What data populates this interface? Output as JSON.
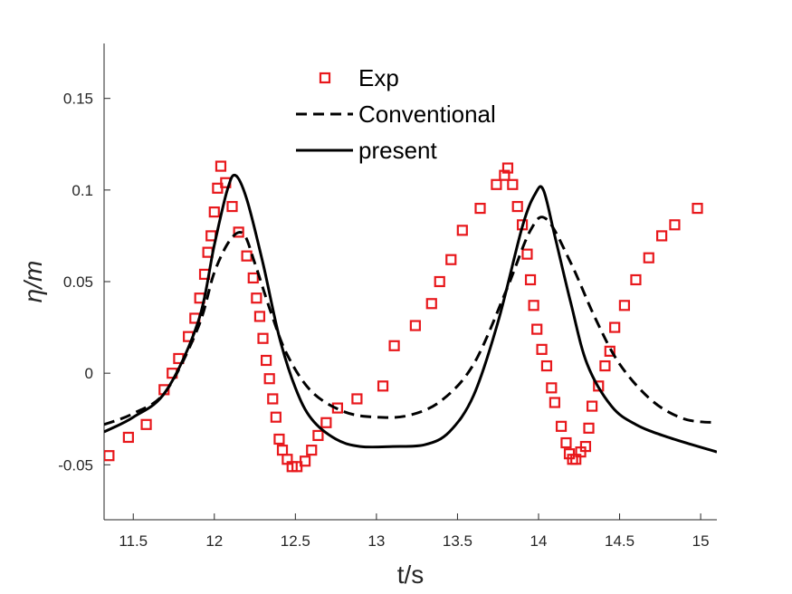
{
  "chart_data": {
    "type": "scatter",
    "title": "",
    "xlabel": "t/s",
    "ylabel": "η/m",
    "xlim": [
      11.32,
      15.1
    ],
    "ylim": [
      -0.08,
      0.18
    ],
    "xticks": [
      11.5,
      12,
      12.5,
      13,
      13.5,
      14,
      14.5,
      15
    ],
    "xtick_labels": [
      "11.5",
      "12",
      "12.5",
      "13",
      "13.5",
      "14",
      "14.5",
      "15"
    ],
    "yticks": [
      -0.05,
      0,
      0.05,
      0.1,
      0.15
    ],
    "ytick_labels": [
      "-0.05",
      "0",
      "0.05",
      "0.1",
      "0.15"
    ],
    "grid": false,
    "legend_position": "top-center",
    "series": [
      {
        "name": "Exp",
        "style": "markers",
        "color": "#e8181c",
        "x": [
          11.35,
          11.47,
          11.58,
          11.69,
          11.74,
          11.78,
          11.84,
          11.88,
          11.91,
          11.94,
          11.96,
          11.98,
          12.0,
          12.02,
          12.04,
          12.07,
          12.11,
          12.15,
          12.2,
          12.24,
          12.26,
          12.28,
          12.3,
          12.32,
          12.34,
          12.36,
          12.38,
          12.4,
          12.42,
          12.45,
          12.48,
          12.51,
          12.56,
          12.6,
          12.64,
          12.69,
          12.76,
          12.88,
          13.04,
          13.11,
          13.24,
          13.34,
          13.39,
          13.46,
          13.53,
          13.64,
          13.74,
          13.79,
          13.81,
          13.84,
          13.87,
          13.9,
          13.93,
          13.95,
          13.97,
          13.99,
          14.02,
          14.05,
          14.08,
          14.1,
          14.14,
          14.17,
          14.19,
          14.21,
          14.23,
          14.26,
          14.29,
          14.31,
          14.33,
          14.37,
          14.41,
          14.44,
          14.47,
          14.53,
          14.6,
          14.68,
          14.76,
          14.84,
          14.98
        ],
        "y": [
          -0.045,
          -0.035,
          -0.028,
          -0.009,
          0.0,
          0.008,
          0.02,
          0.03,
          0.041,
          0.054,
          0.066,
          0.075,
          0.088,
          0.101,
          0.113,
          0.104,
          0.091,
          0.077,
          0.064,
          0.052,
          0.041,
          0.031,
          0.019,
          0.007,
          -0.003,
          -0.014,
          -0.024,
          -0.036,
          -0.042,
          -0.047,
          -0.051,
          -0.051,
          -0.048,
          -0.042,
          -0.034,
          -0.027,
          -0.019,
          -0.014,
          -0.007,
          0.015,
          0.026,
          0.038,
          0.05,
          0.062,
          0.078,
          0.09,
          0.103,
          0.108,
          0.112,
          0.103,
          0.091,
          0.081,
          0.065,
          0.051,
          0.037,
          0.024,
          0.013,
          0.004,
          -0.008,
          -0.016,
          -0.029,
          -0.038,
          -0.044,
          -0.047,
          -0.047,
          -0.043,
          -0.04,
          -0.03,
          -0.018,
          -0.007,
          0.004,
          0.012,
          0.025,
          0.037,
          0.051,
          0.063,
          0.075,
          0.081,
          0.09
        ],
        "marker": "square"
      },
      {
        "name": "Conventional",
        "style": "dashed",
        "color": "#000000",
        "x": [
          11.32,
          11.5,
          11.7,
          11.9,
          12.0,
          12.1,
          12.18,
          12.25,
          12.35,
          12.45,
          12.6,
          12.8,
          13.0,
          13.2,
          13.4,
          13.6,
          13.8,
          13.95,
          14.05,
          14.2,
          14.35,
          14.5,
          14.7,
          14.9,
          15.1
        ],
        "y": [
          -0.028,
          -0.022,
          -0.01,
          0.025,
          0.055,
          0.073,
          0.076,
          0.06,
          0.033,
          0.01,
          -0.01,
          -0.021,
          -0.024,
          -0.023,
          -0.015,
          0.005,
          0.045,
          0.078,
          0.084,
          0.06,
          0.03,
          0.005,
          -0.015,
          -0.025,
          -0.027
        ]
      },
      {
        "name": "present",
        "style": "solid",
        "color": "#000000",
        "x": [
          11.32,
          11.5,
          11.7,
          11.9,
          12.0,
          12.08,
          12.13,
          12.2,
          12.3,
          12.4,
          12.5,
          12.6,
          12.75,
          12.9,
          13.1,
          13.3,
          13.45,
          13.6,
          13.75,
          13.9,
          13.98,
          14.03,
          14.1,
          14.2,
          14.3,
          14.45,
          14.6,
          14.8,
          15.1
        ],
        "y": [
          -0.032,
          -0.024,
          -0.01,
          0.028,
          0.07,
          0.1,
          0.108,
          0.095,
          0.06,
          0.02,
          -0.008,
          -0.025,
          -0.036,
          -0.04,
          -0.04,
          -0.039,
          -0.032,
          -0.012,
          0.028,
          0.08,
          0.098,
          0.1,
          0.075,
          0.038,
          0.005,
          -0.018,
          -0.028,
          -0.035,
          -0.043
        ]
      }
    ]
  }
}
